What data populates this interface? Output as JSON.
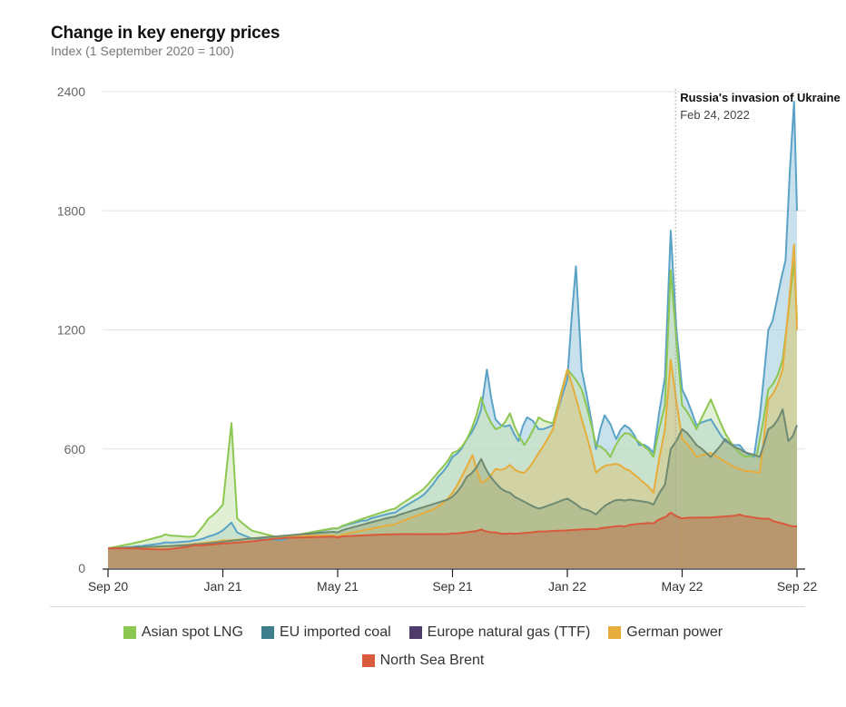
{
  "chart_data": {
    "type": "area",
    "title": "Change in key energy prices",
    "subtitle": "Index (1 September 2020 = 100)",
    "xlabel": "",
    "ylabel": "",
    "ylim": [
      0,
      2400
    ],
    "yticks": [
      0,
      600,
      1200,
      1800,
      2400
    ],
    "ytick_labels": [
      "0",
      "600",
      "1200",
      "1800",
      "2400"
    ],
    "x_unit": "months since Sep 2020",
    "xlim": [
      0,
      24
    ],
    "xticks": [
      0,
      4,
      8,
      12,
      16,
      20,
      24
    ],
    "xtick_labels": [
      "Sep 20",
      "Jan 21",
      "May 21",
      "Sep 21",
      "Jan 22",
      "May 22",
      "Sep 22"
    ],
    "grid": "horizontal",
    "legend_position": "bottom",
    "annotation": {
      "x": 19.77,
      "title": "Russia's invasion of Ukraine",
      "date": "Feb 24, 2022"
    },
    "series": [
      {
        "name": "Europe natural gas (TTF)",
        "key": "ttf",
        "legend_color": "#4e3d6b",
        "line_color": "#5aa3c7",
        "fill_color": "#9cc9df",
        "points": [
          [
            0,
            100
          ],
          [
            1,
            110
          ],
          [
            2,
            130
          ],
          [
            3,
            140
          ],
          [
            3.5,
            160
          ],
          [
            4,
            190
          ],
          [
            4.3,
            230
          ],
          [
            4.5,
            180
          ],
          [
            5,
            150
          ],
          [
            6,
            140
          ],
          [
            7,
            170
          ],
          [
            8,
            200
          ],
          [
            9,
            240
          ],
          [
            10,
            280
          ],
          [
            11,
            370
          ],
          [
            11.5,
            460
          ],
          [
            12,
            560
          ],
          [
            12.5,
            650
          ],
          [
            13,
            800
          ],
          [
            13.2,
            1000
          ],
          [
            13.5,
            750
          ],
          [
            14,
            720
          ],
          [
            14.3,
            640
          ],
          [
            14.6,
            760
          ],
          [
            15,
            700
          ],
          [
            15.5,
            720
          ],
          [
            16,
            950
          ],
          [
            16.3,
            1520
          ],
          [
            16.5,
            1000
          ],
          [
            17,
            600
          ],
          [
            17.3,
            770
          ],
          [
            17.7,
            650
          ],
          [
            18,
            720
          ],
          [
            18.5,
            620
          ],
          [
            19,
            580
          ],
          [
            19.4,
            960
          ],
          [
            19.6,
            1700
          ],
          [
            19.8,
            1200
          ],
          [
            20,
            900
          ],
          [
            20.5,
            720
          ],
          [
            21,
            750
          ],
          [
            21.5,
            640
          ],
          [
            22,
            620
          ],
          [
            22.5,
            560
          ],
          [
            22.7,
            760
          ],
          [
            23,
            1200
          ],
          [
            23.3,
            1350
          ],
          [
            23.6,
            1550
          ],
          [
            23.9,
            2350
          ],
          [
            24,
            1800
          ]
        ]
      },
      {
        "name": "Asian spot LNG",
        "key": "lng",
        "legend_color": "#8cc751",
        "line_color": "#8cc751",
        "fill_color": "#c8e3b2",
        "points": [
          [
            0,
            100
          ],
          [
            1,
            130
          ],
          [
            2,
            170
          ],
          [
            3,
            160
          ],
          [
            3.5,
            250
          ],
          [
            4,
            320
          ],
          [
            4.3,
            730
          ],
          [
            4.5,
            250
          ],
          [
            5,
            190
          ],
          [
            6,
            150
          ],
          [
            8,
            200
          ],
          [
            10,
            300
          ],
          [
            11,
            400
          ],
          [
            12,
            580
          ],
          [
            12.5,
            650
          ],
          [
            13,
            860
          ],
          [
            13.5,
            700
          ],
          [
            14,
            780
          ],
          [
            14.5,
            620
          ],
          [
            15,
            760
          ],
          [
            15.5,
            730
          ],
          [
            16,
            1000
          ],
          [
            16.5,
            900
          ],
          [
            17,
            620
          ],
          [
            17.5,
            560
          ],
          [
            18,
            680
          ],
          [
            19,
            560
          ],
          [
            19.4,
            820
          ],
          [
            19.6,
            1500
          ],
          [
            20,
            820
          ],
          [
            20.5,
            700
          ],
          [
            21,
            850
          ],
          [
            21.5,
            680
          ],
          [
            22,
            580
          ],
          [
            22.6,
            570
          ],
          [
            23,
            900
          ],
          [
            23.5,
            1050
          ],
          [
            23.9,
            1550
          ],
          [
            24,
            1250
          ]
        ]
      },
      {
        "name": "German power",
        "key": "power",
        "legend_color": "#e6ac3c",
        "line_color": "#e6ac3c",
        "fill_color": "#d8c684",
        "points": [
          [
            0,
            100
          ],
          [
            2,
            110
          ],
          [
            4,
            140
          ],
          [
            6,
            160
          ],
          [
            8,
            160
          ],
          [
            10,
            220
          ],
          [
            11.5,
            310
          ],
          [
            12,
            380
          ],
          [
            12.7,
            570
          ],
          [
            13,
            430
          ],
          [
            13.5,
            500
          ],
          [
            14,
            520
          ],
          [
            14.5,
            480
          ],
          [
            15,
            580
          ],
          [
            15.5,
            700
          ],
          [
            16,
            1000
          ],
          [
            16.5,
            750
          ],
          [
            17,
            480
          ],
          [
            17.5,
            520
          ],
          [
            18,
            500
          ],
          [
            19,
            380
          ],
          [
            19.4,
            700
          ],
          [
            19.6,
            1050
          ],
          [
            20,
            650
          ],
          [
            20.5,
            560
          ],
          [
            21,
            580
          ],
          [
            22,
            500
          ],
          [
            22.7,
            480
          ],
          [
            23,
            850
          ],
          [
            23.5,
            1000
          ],
          [
            23.9,
            1630
          ],
          [
            24,
            1200
          ]
        ]
      },
      {
        "name": "EU imported coal",
        "key": "coal",
        "legend_color": "#3f7f8c",
        "line_color": "#6e8a72",
        "fill_color": "#9fae82",
        "points": [
          [
            0,
            100
          ],
          [
            3,
            120
          ],
          [
            5,
            150
          ],
          [
            8,
            180
          ],
          [
            10,
            260
          ],
          [
            12,
            360
          ],
          [
            12.5,
            460
          ],
          [
            13,
            550
          ],
          [
            13.5,
            430
          ],
          [
            14,
            380
          ],
          [
            15,
            300
          ],
          [
            16,
            350
          ],
          [
            16.5,
            300
          ],
          [
            17,
            270
          ],
          [
            17.5,
            330
          ],
          [
            18,
            340
          ],
          [
            19,
            320
          ],
          [
            19.4,
            420
          ],
          [
            19.6,
            600
          ],
          [
            20,
            700
          ],
          [
            20.5,
            620
          ],
          [
            21,
            560
          ],
          [
            21.5,
            650
          ],
          [
            22,
            600
          ],
          [
            22.7,
            560
          ],
          [
            23,
            700
          ],
          [
            23.5,
            800
          ],
          [
            23.7,
            640
          ],
          [
            24,
            720
          ]
        ]
      },
      {
        "name": "North Sea Brent",
        "key": "brent",
        "legend_color": "#d9593d",
        "line_color": "#d9593d",
        "fill_color": "#b8976e",
        "points": [
          [
            0,
            100
          ],
          [
            1,
            100
          ],
          [
            2,
            95
          ],
          [
            3,
            115
          ],
          [
            4,
            125
          ],
          [
            5,
            135
          ],
          [
            6,
            150
          ],
          [
            8,
            155
          ],
          [
            10,
            170
          ],
          [
            12,
            175
          ],
          [
            13,
            195
          ],
          [
            13.5,
            180
          ],
          [
            14,
            175
          ],
          [
            15,
            185
          ],
          [
            16,
            190
          ],
          [
            17,
            195
          ],
          [
            18,
            210
          ],
          [
            19,
            225
          ],
          [
            19.6,
            280
          ],
          [
            20,
            250
          ],
          [
            21,
            255
          ],
          [
            22,
            270
          ],
          [
            23,
            250
          ],
          [
            24,
            210
          ]
        ]
      }
    ],
    "legend_rows": [
      [
        "lng",
        "coal",
        "ttf",
        "power"
      ],
      [
        "brent"
      ]
    ]
  }
}
